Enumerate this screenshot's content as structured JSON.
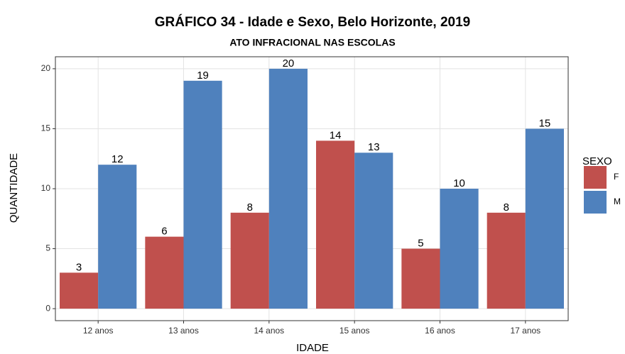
{
  "chart_data": {
    "type": "bar",
    "title": "GRÁFICO 34 - Idade e Sexo, Belo Horizonte, 2019",
    "subtitle": "ATO INFRACIONAL NAS ESCOLAS",
    "x_label": "IDADE",
    "y_label": "QUANTIDADE",
    "legend_title": "SEXO",
    "legend_position": "right",
    "categories": [
      "12 anos",
      "13 anos",
      "14 anos",
      "15 anos",
      "16 anos",
      "17 anos"
    ],
    "series": [
      {
        "name": "F",
        "color": "#c0504d",
        "values": [
          3,
          6,
          8,
          14,
          5,
          8
        ]
      },
      {
        "name": "M",
        "color": "#4f81bd",
        "values": [
          12,
          19,
          20,
          13,
          10,
          15
        ]
      }
    ],
    "ylim": [
      -1,
      21
    ],
    "yticks": [
      0,
      5,
      10,
      15,
      20
    ],
    "grid": true
  }
}
